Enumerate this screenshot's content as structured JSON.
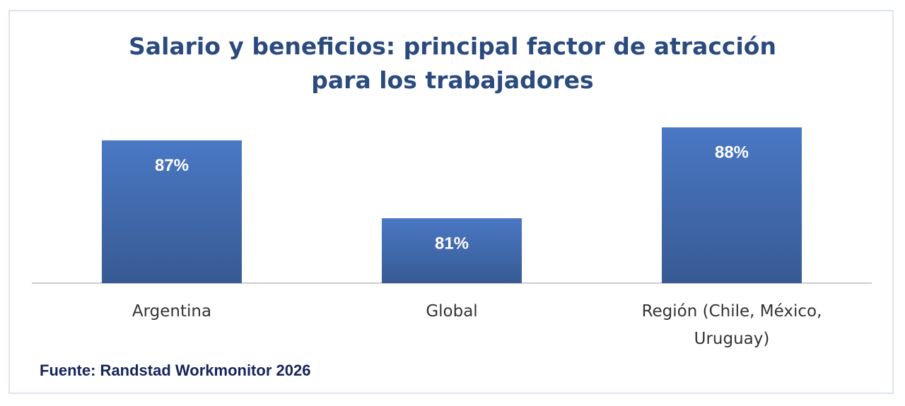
{
  "chart_data": {
    "type": "bar",
    "title": "Salario y beneficios: principal factor de atracción para los trabajadores",
    "categories": [
      "Argentina",
      "Global",
      "Región (Chile, México, Uruguay)"
    ],
    "values": [
      87,
      81,
      88
    ],
    "value_labels": [
      "87%",
      "81%",
      "88%"
    ],
    "color": "#4a78c4",
    "ylim": [
      76,
      89
    ],
    "source": "Fuente: Randstad Workmonitor 2026"
  }
}
